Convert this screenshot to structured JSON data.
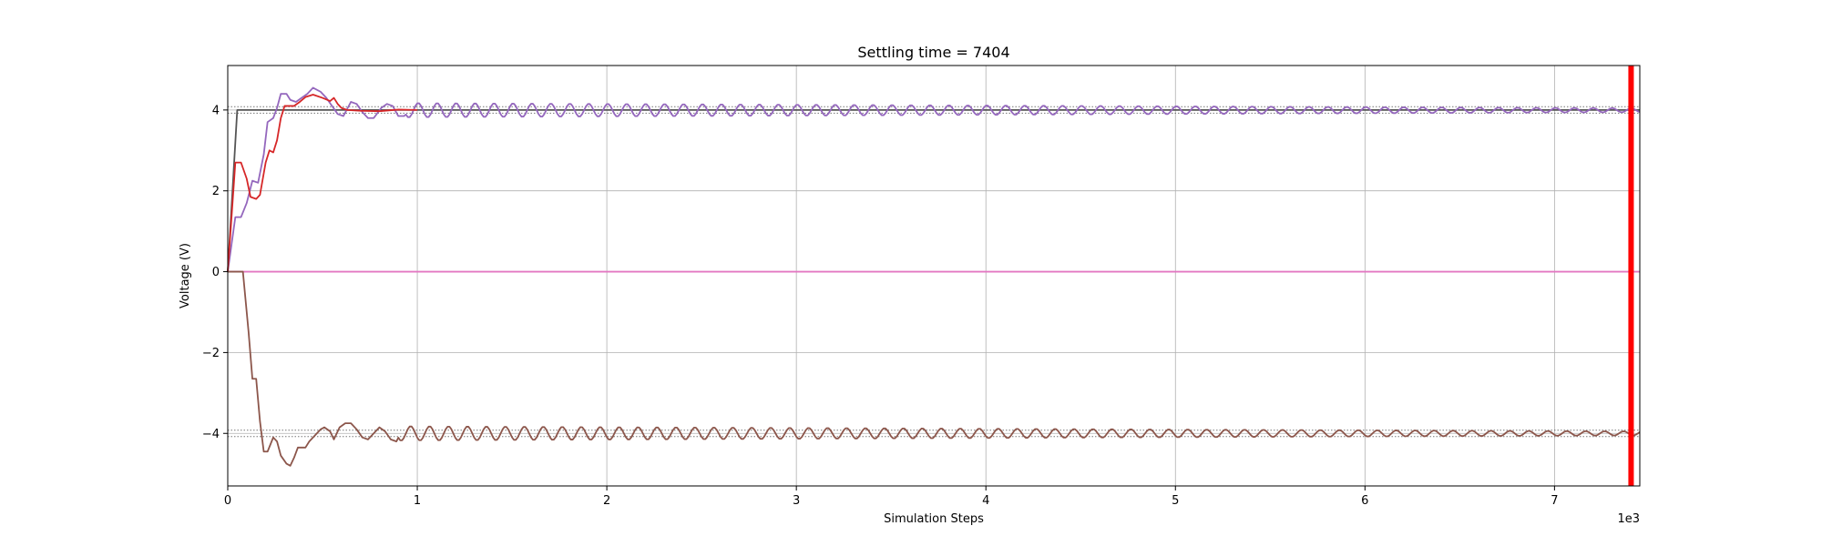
{
  "chart_data": {
    "type": "line",
    "title": "Settling time = 7404",
    "xlabel": "Simulation Steps",
    "ylabel": "Voltage (V)",
    "x_offset_text": "1e3",
    "xlim": [
      0,
      7450
    ],
    "ylim": [
      -5.3,
      5.1
    ],
    "grid": true,
    "x_ticks": [
      0,
      1000,
      2000,
      3000,
      4000,
      5000,
      6000,
      7000
    ],
    "x_tick_labels": [
      "0",
      "1",
      "2",
      "3",
      "4",
      "5",
      "6",
      "7"
    ],
    "y_ticks": [
      -4,
      -2,
      0,
      2,
      4
    ],
    "y_tick_labels": [
      "−4",
      "−2",
      "0",
      "2",
      "4"
    ],
    "settling_marker": {
      "x": 7404,
      "color": "#ff0000"
    },
    "tolerance_bands": [
      {
        "center": 4,
        "lower": 3.92,
        "upper": 4.08,
        "color": "#555555"
      },
      {
        "center": -4,
        "lower": -4.08,
        "upper": -3.92,
        "color": "#555555"
      }
    ],
    "series": [
      {
        "color": "#555555",
        "points": [
          [
            0,
            0
          ],
          [
            50,
            4
          ],
          [
            7450,
            4
          ]
        ]
      },
      {
        "color": "#e377c2",
        "points": [
          [
            0,
            0
          ],
          [
            7450,
            0
          ]
        ]
      },
      {
        "color": "#9467bd",
        "points": [
          [
            0,
            0
          ],
          [
            40,
            1.35
          ],
          [
            70,
            1.35
          ],
          [
            100,
            1.7
          ],
          [
            130,
            2.25
          ],
          [
            160,
            2.2
          ],
          [
            190,
            2.9
          ],
          [
            210,
            3.7
          ],
          [
            240,
            3.8
          ],
          [
            260,
            4.05
          ],
          [
            280,
            4.4
          ],
          [
            310,
            4.4
          ],
          [
            330,
            4.25
          ],
          [
            360,
            4.2
          ],
          [
            390,
            4.3
          ],
          [
            420,
            4.4
          ],
          [
            450,
            4.55
          ],
          [
            490,
            4.45
          ],
          [
            520,
            4.3
          ],
          [
            550,
            4.1
          ],
          [
            580,
            3.9
          ],
          [
            610,
            3.85
          ],
          [
            650,
            4.2
          ],
          [
            680,
            4.15
          ],
          [
            710,
            3.95
          ],
          [
            740,
            3.8
          ],
          [
            770,
            3.8
          ],
          [
            810,
            4.05
          ],
          [
            840,
            4.15
          ],
          [
            870,
            4.1
          ],
          [
            900,
            3.85
          ],
          [
            930,
            3.85
          ]
        ],
        "osc": {
          "start": 930,
          "end": 7450,
          "period": 100,
          "amp_start": 0.18,
          "amp_end": 0.05,
          "center": 3.995
        }
      },
      {
        "color": "#d62728",
        "points": [
          [
            0,
            0
          ],
          [
            40,
            2.7
          ],
          [
            70,
            2.7
          ],
          [
            100,
            2.3
          ],
          [
            120,
            1.85
          ],
          [
            150,
            1.8
          ],
          [
            170,
            1.9
          ],
          [
            200,
            2.7
          ],
          [
            220,
            3.0
          ],
          [
            240,
            2.95
          ],
          [
            260,
            3.25
          ],
          [
            280,
            3.8
          ],
          [
            300,
            4.1
          ],
          [
            350,
            4.1
          ],
          [
            380,
            4.2
          ],
          [
            410,
            4.32
          ],
          [
            450,
            4.38
          ],
          [
            500,
            4.3
          ],
          [
            540,
            4.22
          ],
          [
            560,
            4.3
          ],
          [
            580,
            4.15
          ],
          [
            600,
            4.05
          ],
          [
            630,
            4.0
          ],
          [
            700,
            3.98
          ],
          [
            800,
            3.97
          ],
          [
            850,
            3.99
          ],
          [
            900,
            4.01
          ],
          [
            1000,
            4.0
          ]
        ]
      },
      {
        "color": "#8c564b",
        "points": [
          [
            0,
            0
          ],
          [
            80,
            0
          ],
          [
            110,
            -1.5
          ],
          [
            130,
            -2.65
          ],
          [
            150,
            -2.65
          ],
          [
            170,
            -3.7
          ],
          [
            190,
            -4.45
          ],
          [
            210,
            -4.45
          ],
          [
            240,
            -4.1
          ],
          [
            260,
            -4.2
          ],
          [
            280,
            -4.55
          ],
          [
            310,
            -4.75
          ],
          [
            330,
            -4.8
          ],
          [
            350,
            -4.6
          ],
          [
            370,
            -4.35
          ],
          [
            410,
            -4.35
          ],
          [
            430,
            -4.2
          ],
          [
            460,
            -4.05
          ],
          [
            490,
            -3.9
          ],
          [
            510,
            -3.85
          ],
          [
            540,
            -3.95
          ],
          [
            560,
            -4.15
          ],
          [
            590,
            -3.85
          ],
          [
            620,
            -3.75
          ],
          [
            650,
            -3.75
          ],
          [
            680,
            -3.9
          ],
          [
            710,
            -4.1
          ],
          [
            740,
            -4.15
          ],
          [
            770,
            -4.0
          ],
          [
            800,
            -3.85
          ],
          [
            830,
            -3.95
          ],
          [
            860,
            -4.15
          ],
          [
            890,
            -4.2
          ]
        ],
        "osc": {
          "start": 890,
          "end": 7450,
          "period": 100,
          "amp_start": 0.18,
          "amp_end": 0.05,
          "center": -4.0
        }
      }
    ]
  }
}
